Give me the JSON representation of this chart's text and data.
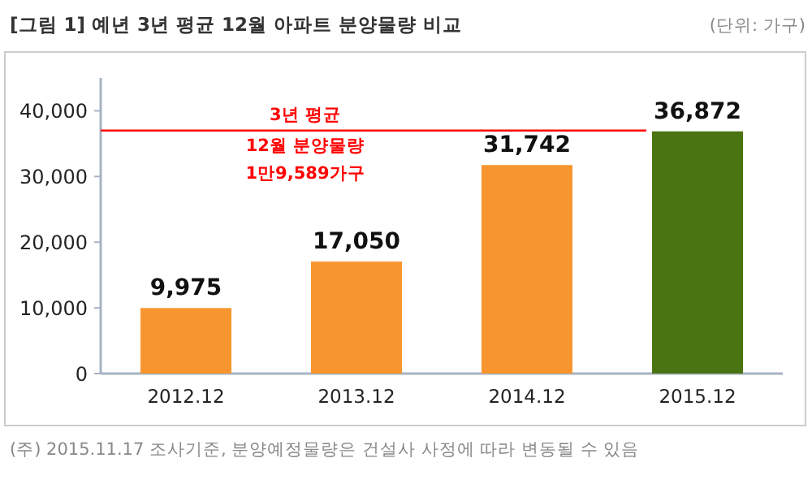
{
  "chart_data": {
    "type": "bar",
    "title": "[그림 1] 예년 3년 평균 12월 아파트 분양물량 비교",
    "subtitle": "(단위: 가구)",
    "categories": [
      "2012.12",
      "2013.12",
      "2014.12",
      "2015.12"
    ],
    "values": [
      9975,
      17050,
      31742,
      36872
    ],
    "colors": [
      "#f7962f",
      "#f7962f",
      "#f7962f",
      "#4a7311"
    ],
    "ylim": [
      0,
      45000
    ],
    "yticks": [
      {
        "value": 0,
        "label": "0"
      },
      {
        "value": 10000,
        "label": "10,000"
      },
      {
        "value": 20000,
        "label": "20,000"
      },
      {
        "value": 30000,
        "label": "30,000"
      },
      {
        "value": 40000,
        "label": "40,000"
      }
    ],
    "value_labels": [
      "9,975",
      "17,050",
      "31,742",
      "36,872"
    ],
    "ref_lines": [
      {
        "axis": "y",
        "value": 37000,
        "color": "#ff0000"
      }
    ],
    "annotations": [
      "3년 평균",
      "12월 분양물량",
      "1만9,589가구",
      "(주) 2015.11.17 조사기준, 분양예정물량은 건설사 사정에 따라 변동될 수 있음"
    ],
    "grid": false
  }
}
